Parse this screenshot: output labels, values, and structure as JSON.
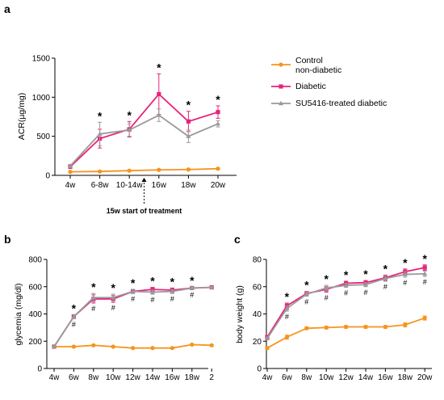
{
  "legend": {
    "position": "right",
    "entries": [
      {
        "label_lines": [
          "Control",
          "non-diabetic"
        ],
        "color": "#f7941d",
        "marker": "circle"
      },
      {
        "label_lines": [
          "Diabetic"
        ],
        "color": "#e8237c",
        "marker": "square"
      },
      {
        "label_lines": [
          "SU5416-treated diabetic"
        ],
        "color": "#9a9a9a",
        "marker": "triangle"
      }
    ]
  },
  "chart_data": [
    {
      "panel": "a",
      "type": "line",
      "ylabel": "ACR(µg/mg)",
      "xlabel": "",
      "ylim": [
        0,
        1500
      ],
      "yticks": [
        0,
        500,
        1000,
        1500
      ],
      "categories": [
        "4w",
        "6-8w",
        "10-14w",
        "16w",
        "18w",
        "20w"
      ],
      "annotation": "15w start of treatment",
      "annotation_after_category": "10-14w",
      "series": [
        {
          "name": "Control non-diabetic",
          "color": "#f7941d",
          "marker": "circle",
          "values": [
            45,
            50,
            60,
            70,
            75,
            85
          ],
          "errors": [
            10,
            10,
            10,
            10,
            10,
            10
          ]
        },
        {
          "name": "Diabetic",
          "color": "#e8237c",
          "marker": "square",
          "values": [
            110,
            470,
            590,
            1040,
            690,
            810
          ],
          "errors": [
            20,
            120,
            100,
            260,
            130,
            80
          ]
        },
        {
          "name": "SU5416-treated diabetic",
          "color": "#9a9a9a",
          "marker": "triangle",
          "values": [
            120,
            530,
            580,
            770,
            500,
            660
          ],
          "errors": [
            20,
            150,
            80,
            80,
            80,
            40
          ]
        }
      ],
      "stars": [
        false,
        true,
        true,
        true,
        true,
        true
      ],
      "hashes": [
        false,
        false,
        false,
        false,
        false,
        false
      ]
    },
    {
      "panel": "b",
      "type": "line",
      "ylabel": "glycemia (mg/dl)",
      "xlabel": "",
      "ylim": [
        0,
        800
      ],
      "yticks": [
        0,
        200,
        400,
        600,
        800
      ],
      "categories": [
        "4w",
        "6w",
        "8w",
        "10w",
        "12w",
        "14w",
        "16w",
        "18w",
        "2"
      ],
      "series": [
        {
          "name": "Control non-diabetic",
          "color": "#f7941d",
          "marker": "circle",
          "values": [
            160,
            160,
            170,
            160,
            150,
            150,
            150,
            175,
            170
          ],
          "errors": [
            5,
            5,
            5,
            5,
            5,
            5,
            5,
            5,
            5
          ]
        },
        {
          "name": "Diabetic",
          "color": "#e8237c",
          "marker": "square",
          "values": [
            160,
            380,
            510,
            510,
            565,
            580,
            575,
            590,
            595
          ],
          "errors": [
            5,
            15,
            30,
            25,
            15,
            15,
            15,
            10,
            5
          ]
        },
        {
          "name": "SU5416-treated diabetic",
          "color": "#9a9a9a",
          "marker": "triangle",
          "values": [
            160,
            380,
            520,
            520,
            565,
            560,
            565,
            590,
            595
          ],
          "errors": [
            5,
            15,
            30,
            25,
            15,
            15,
            15,
            10,
            5
          ]
        }
      ],
      "stars": [
        false,
        true,
        true,
        true,
        true,
        true,
        true,
        true,
        false
      ],
      "hashes": [
        false,
        true,
        true,
        true,
        true,
        true,
        true,
        true,
        false
      ]
    },
    {
      "panel": "c",
      "type": "line",
      "ylabel": "body weight (g)",
      "xlabel": "",
      "ylim": [
        0,
        80
      ],
      "yticks": [
        0,
        20,
        40,
        60,
        80
      ],
      "categories": [
        "4w",
        "6w",
        "8w",
        "10w",
        "12w",
        "14w",
        "16w",
        "18w",
        "20w"
      ],
      "series": [
        {
          "name": "Control non-diabetic",
          "color": "#f7941d",
          "marker": "circle",
          "values": [
            15,
            23,
            29.5,
            30,
            30.5,
            30.5,
            30.5,
            32,
            37
          ],
          "errors": [
            1,
            1.5,
            1,
            1,
            1,
            1,
            1,
            1.5,
            1.5
          ]
        },
        {
          "name": "Diabetic",
          "color": "#e8237c",
          "marker": "square",
          "values": [
            23,
            46,
            55,
            58,
            62.5,
            63,
            66.5,
            71,
            74
          ],
          "errors": [
            1,
            2,
            1.5,
            2,
            1.5,
            1.5,
            2,
            2,
            2
          ]
        },
        {
          "name": "SU5416-treated diabetic",
          "color": "#9a9a9a",
          "marker": "triangle",
          "values": [
            22,
            44,
            54.5,
            59,
            61,
            61.5,
            66,
            69,
            69.5
          ],
          "errors": [
            1,
            2,
            1.5,
            2,
            1.5,
            1.5,
            2,
            2,
            2
          ]
        }
      ],
      "stars": [
        false,
        true,
        true,
        true,
        true,
        true,
        true,
        true,
        true
      ],
      "hashes": [
        false,
        true,
        true,
        true,
        true,
        true,
        true,
        true,
        true
      ]
    }
  ]
}
